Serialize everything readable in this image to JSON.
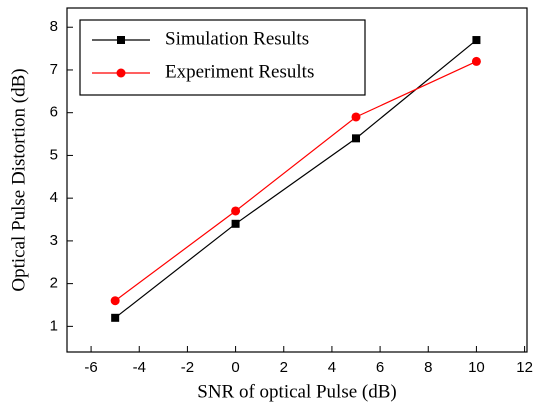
{
  "chart_data": {
    "type": "line",
    "x_label": "SNR of optical Pulse (dB)",
    "y_label": "Optical Pulse Distortion (dB)",
    "x": [
      -5,
      0,
      5,
      10
    ],
    "series": [
      {
        "name": "Simulation Results",
        "color": "#000000",
        "marker": "square",
        "values": [
          1.2,
          3.4,
          5.4,
          7.7
        ]
      },
      {
        "name": "Experiment Results",
        "color": "#ff0000",
        "marker": "circle",
        "values": [
          1.6,
          3.7,
          5.9,
          7.2
        ]
      }
    ],
    "xlim": [
      -7,
      12.1
    ],
    "xticks": [
      -6,
      -4,
      -2,
      0,
      2,
      4,
      6,
      8,
      10,
      12
    ],
    "ylim": [
      0.4,
      8.45
    ],
    "yticks": [
      1,
      2,
      3,
      4,
      5,
      6,
      7,
      8
    ],
    "legend": "upper left"
  }
}
